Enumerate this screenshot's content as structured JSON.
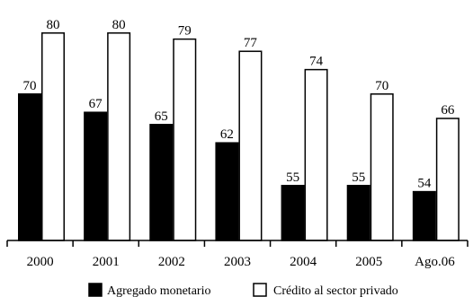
{
  "chart_data": {
    "type": "bar",
    "categories": [
      "2000",
      "2001",
      "2002",
      "2003",
      "2004",
      "2005",
      "Ago.06"
    ],
    "series": [
      {
        "name": "Agregado monetario",
        "values": [
          70,
          67,
          65,
          62,
          55,
          55,
          54
        ],
        "color": "#000000"
      },
      {
        "name": "Crédito al sector privado",
        "values": [
          80,
          80,
          79,
          77,
          74,
          70,
          66
        ],
        "color": "#ffffff"
      }
    ],
    "ylim": [
      46,
      81
    ],
    "grid": false,
    "legend": "bottom",
    "title": "",
    "xlabel": "",
    "ylabel": ""
  }
}
